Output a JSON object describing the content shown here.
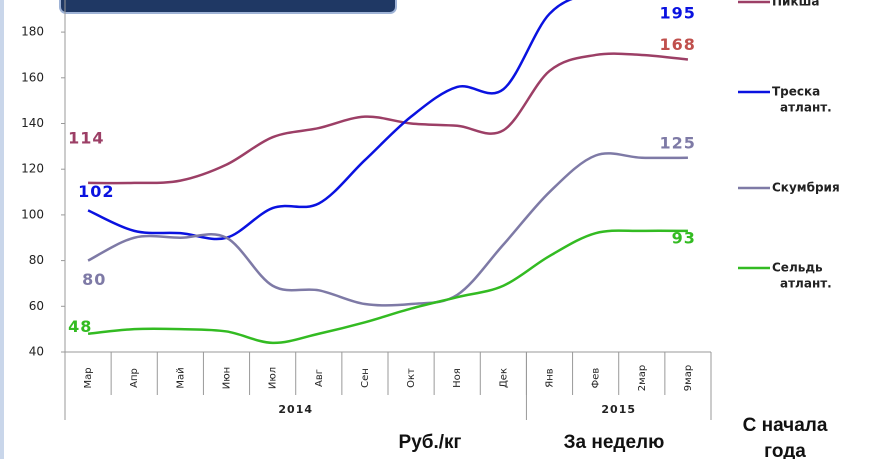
{
  "chart_data": {
    "type": "line",
    "categories": [
      "Мар",
      "Апр",
      "Май",
      "Июн",
      "Июл",
      "Авг",
      "Сен",
      "Окт",
      "Ноя",
      "Дек",
      "Янв",
      "Фев",
      "2мар",
      "9мар"
    ],
    "x_groups": [
      {
        "label": "2014",
        "span": 10
      },
      {
        "label": "2015",
        "span": 4
      }
    ],
    "series": [
      {
        "name": "Пикша",
        "color": "#9c3f66",
        "label_color": "#c0504d",
        "values": [
          114,
          114,
          115,
          122,
          134,
          138,
          143,
          140,
          139,
          137,
          163,
          170,
          170,
          168
        ]
      },
      {
        "name": "Треска атлант.",
        "color": "#0a12e0",
        "values": [
          102,
          93,
          92,
          90,
          103,
          105,
          124,
          143,
          156,
          155,
          188,
          197,
          196,
          195
        ]
      },
      {
        "name": "Скумбрия",
        "color": "#7e7aa6",
        "values": [
          80,
          90,
          90,
          90,
          69,
          67,
          61,
          61,
          65,
          87,
          110,
          126,
          125,
          125
        ]
      },
      {
        "name": "Сельдь атлант.",
        "color": "#33bb22",
        "values": [
          48,
          50,
          50,
          49,
          44,
          48,
          53,
          59,
          64,
          69,
          82,
          92,
          93,
          93
        ]
      }
    ],
    "ylim": [
      40,
      200
    ],
    "yticks": [
      40,
      60,
      80,
      100,
      120,
      140,
      160,
      180
    ],
    "footer": [
      "Руб./кг",
      "За неделю",
      "С начала года"
    ]
  }
}
